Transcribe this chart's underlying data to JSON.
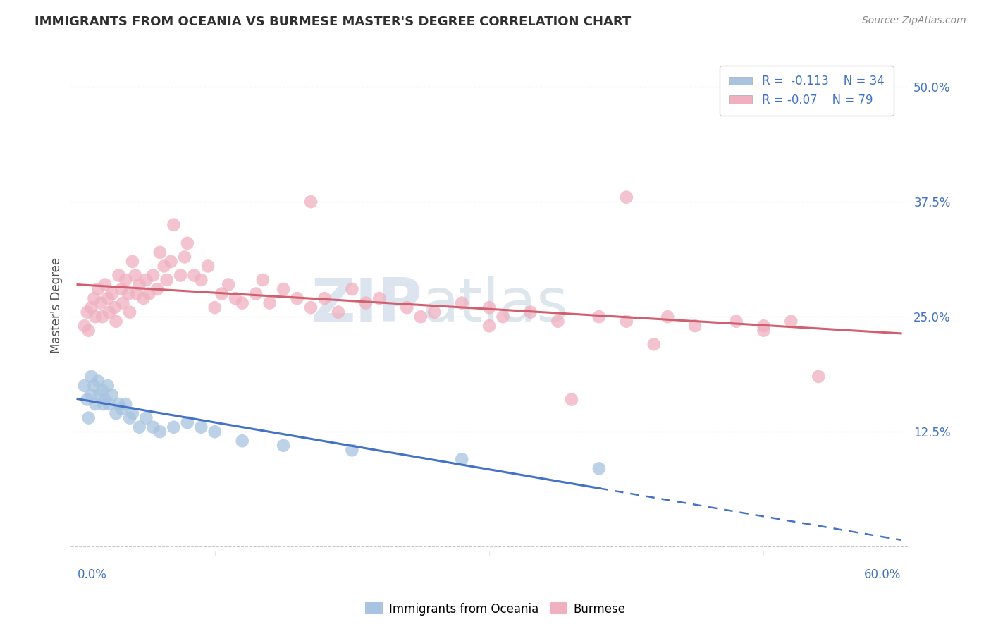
{
  "title": "IMMIGRANTS FROM OCEANIA VS BURMESE MASTER'S DEGREE CORRELATION CHART",
  "source_text": "Source: ZipAtlas.com",
  "ylabel": "Master's Degree",
  "xlim": [
    -0.005,
    0.605
  ],
  "ylim": [
    -0.01,
    0.535
  ],
  "yticks": [
    0.0,
    0.125,
    0.25,
    0.375,
    0.5
  ],
  "ytick_labels": [
    "",
    "12.5%",
    "25.0%",
    "37.5%",
    "50.0%"
  ],
  "xtick_left_label": "0.0%",
  "xtick_right_label": "60.0%",
  "blue_color": "#a8c4e0",
  "pink_color": "#f0b0c0",
  "blue_line_color": "#4472C4",
  "pink_line_color": "#d06070",
  "blue_label": "Immigrants from Oceania",
  "pink_label": "Burmese",
  "blue_R": -0.113,
  "blue_N": 34,
  "pink_R": -0.07,
  "pink_N": 79,
  "watermark": "ZIPatlas",
  "watermark_color": "#c8d8e8",
  "background_color": "#ffffff",
  "grid_color": "#c8c8c8",
  "title_color": "#303030",
  "axis_label_color": "#505050",
  "tick_color": "#4472C4",
  "blue_scatter_x": [
    0.005,
    0.007,
    0.008,
    0.01,
    0.01,
    0.012,
    0.013,
    0.015,
    0.016,
    0.018,
    0.019,
    0.02,
    0.022,
    0.023,
    0.025,
    0.028,
    0.03,
    0.032,
    0.035,
    0.038,
    0.04,
    0.045,
    0.05,
    0.055,
    0.06,
    0.07,
    0.08,
    0.09,
    0.1,
    0.12,
    0.15,
    0.2,
    0.28,
    0.38
  ],
  "blue_scatter_y": [
    0.175,
    0.16,
    0.14,
    0.185,
    0.165,
    0.175,
    0.155,
    0.18,
    0.165,
    0.17,
    0.155,
    0.16,
    0.175,
    0.155,
    0.165,
    0.145,
    0.155,
    0.15,
    0.155,
    0.14,
    0.145,
    0.13,
    0.14,
    0.13,
    0.125,
    0.13,
    0.135,
    0.13,
    0.125,
    0.115,
    0.11,
    0.105,
    0.095,
    0.085
  ],
  "pink_scatter_x": [
    0.005,
    0.007,
    0.008,
    0.01,
    0.012,
    0.013,
    0.015,
    0.017,
    0.018,
    0.02,
    0.022,
    0.023,
    0.025,
    0.027,
    0.028,
    0.03,
    0.032,
    0.033,
    0.035,
    0.037,
    0.038,
    0.04,
    0.042,
    0.043,
    0.045,
    0.048,
    0.05,
    0.052,
    0.055,
    0.058,
    0.06,
    0.063,
    0.065,
    0.068,
    0.07,
    0.075,
    0.078,
    0.08,
    0.085,
    0.09,
    0.095,
    0.1,
    0.105,
    0.11,
    0.115,
    0.12,
    0.13,
    0.135,
    0.14,
    0.15,
    0.16,
    0.17,
    0.18,
    0.19,
    0.2,
    0.21,
    0.22,
    0.24,
    0.26,
    0.28,
    0.3,
    0.31,
    0.33,
    0.35,
    0.38,
    0.4,
    0.43,
    0.45,
    0.48,
    0.5,
    0.52,
    0.3,
    0.17,
    0.25,
    0.4,
    0.5,
    0.54,
    0.36,
    0.42
  ],
  "pink_scatter_y": [
    0.24,
    0.255,
    0.235,
    0.26,
    0.27,
    0.25,
    0.28,
    0.265,
    0.25,
    0.285,
    0.27,
    0.255,
    0.275,
    0.26,
    0.245,
    0.295,
    0.28,
    0.265,
    0.29,
    0.275,
    0.255,
    0.31,
    0.295,
    0.275,
    0.285,
    0.27,
    0.29,
    0.275,
    0.295,
    0.28,
    0.32,
    0.305,
    0.29,
    0.31,
    0.35,
    0.295,
    0.315,
    0.33,
    0.295,
    0.29,
    0.305,
    0.26,
    0.275,
    0.285,
    0.27,
    0.265,
    0.275,
    0.29,
    0.265,
    0.28,
    0.27,
    0.26,
    0.27,
    0.255,
    0.28,
    0.265,
    0.27,
    0.26,
    0.255,
    0.265,
    0.26,
    0.25,
    0.255,
    0.245,
    0.25,
    0.245,
    0.25,
    0.24,
    0.245,
    0.24,
    0.245,
    0.24,
    0.375,
    0.25,
    0.38,
    0.235,
    0.185,
    0.16,
    0.22
  ]
}
